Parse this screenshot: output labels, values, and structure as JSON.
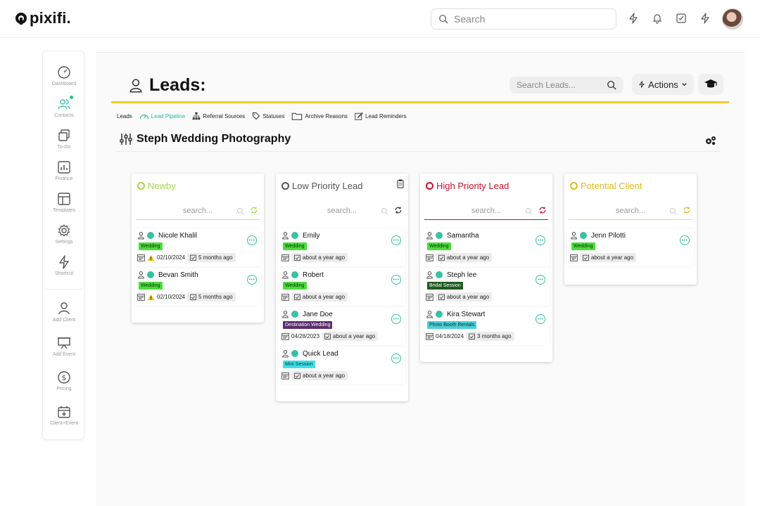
{
  "app": {
    "logo": "pixifi."
  },
  "topbar": {
    "search_placeholder": "Search"
  },
  "sidebar": {
    "items": [
      {
        "label": "Dashboard",
        "icon": "speedometer-icon"
      },
      {
        "label": "Contacts",
        "icon": "users-icon"
      },
      {
        "label": "To-Do",
        "icon": "copy-icon"
      },
      {
        "label": "Finance",
        "icon": "bar-chart-icon"
      },
      {
        "label": "Templates",
        "icon": "layout-icon"
      },
      {
        "label": "Settings",
        "icon": "gear-icon"
      },
      {
        "label": "Shortcut",
        "icon": "lightning-icon"
      },
      {
        "label": "Add Client",
        "icon": "user-icon"
      },
      {
        "label": "Add Event",
        "icon": "presentation-icon"
      },
      {
        "label": "Pricing",
        "icon": "dollar-circle-icon"
      },
      {
        "label": "Client+Event",
        "icon": "calendar-plus-icon"
      }
    ]
  },
  "leads": {
    "title": "Leads:",
    "search_placeholder": "Search Leads...",
    "actions_label": "Actions",
    "subnav": [
      "Leads",
      "Lead Pipeline",
      "Referral Sources",
      "Statuses",
      "Archive Reasons",
      "Lead Reminders"
    ],
    "pipeline_title": "Steph Wedding Photography"
  },
  "columns": [
    {
      "title": "Newby",
      "color": "#a8d84a",
      "search_placeholder": "search...",
      "cards": [
        {
          "name": "Nicole Khalil",
          "tag": "Wedding",
          "tag_bg": "#4cdc3c",
          "tag_fg": "#0a2e0a",
          "date": "02/10/2024",
          "warn": true,
          "ago": "5 months ago"
        },
        {
          "name": "Bevan Smith",
          "tag": "Wedding",
          "tag_bg": "#4cdc3c",
          "tag_fg": "#0a2e0a",
          "date": "02/10/2024",
          "warn": true,
          "ago": "5 months ago"
        }
      ]
    },
    {
      "title": "Low Priority Lead",
      "color": "#555555",
      "search_placeholder": "search...",
      "cards": [
        {
          "name": "Emily",
          "tag": "Wedding",
          "tag_bg": "#4cdc3c",
          "tag_fg": "#0a2e0a",
          "date": "",
          "warn": false,
          "ago": "about a year ago"
        },
        {
          "name": "Robert",
          "tag": "Wedding",
          "tag_bg": "#4cdc3c",
          "tag_fg": "#0a2e0a",
          "date": "",
          "warn": false,
          "ago": "about a year ago"
        },
        {
          "name": "Jane Doe",
          "tag": "Destination Wedding",
          "tag_bg": "#5a2d6e",
          "tag_fg": "#ffffff",
          "date": "04/28/2023",
          "warn": false,
          "ago": "about a year ago"
        },
        {
          "name": "Quick Lead",
          "tag": "Mini Session",
          "tag_bg": "#3ee0e8",
          "tag_fg": "#0a2e30",
          "date": "",
          "warn": false,
          "ago": "about a year ago"
        }
      ]
    },
    {
      "title": "High Priority Lead",
      "color": "#c8102e",
      "search_placeholder": "search...",
      "cards": [
        {
          "name": "Samantha",
          "tag": "Wedding",
          "tag_bg": "#4cdc3c",
          "tag_fg": "#0a2e0a",
          "date": "",
          "warn": false,
          "ago": "about a year ago"
        },
        {
          "name": "Steph lee",
          "tag": "Bridal Session",
          "tag_bg": "#1e5a1e",
          "tag_fg": "#ffffff",
          "date": "",
          "warn": false,
          "ago": "about a year ago"
        },
        {
          "name": "Kira Stewart",
          "tag": "Photo Booth Rentals",
          "tag_bg": "#4ccfd6",
          "tag_fg": "#0a2e30",
          "date": "04/18/2024",
          "warn": false,
          "ago": "3 months ago"
        }
      ]
    },
    {
      "title": "Potential Client",
      "color": "#e0b820",
      "search_placeholder": "search...",
      "cards": [
        {
          "name": "Jenn Pilotti",
          "tag": "Wedding",
          "tag_bg": "#4cdc3c",
          "tag_fg": "#0a2e0a",
          "date": "",
          "warn": false,
          "ago": "about a year ago"
        }
      ]
    }
  ]
}
